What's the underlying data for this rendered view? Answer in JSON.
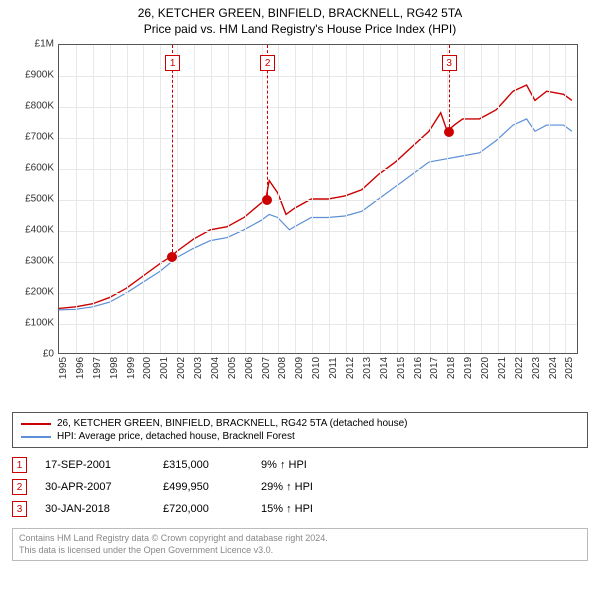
{
  "title": "26, KETCHER GREEN, BINFIELD, BRACKNELL, RG42 5TA",
  "subtitle": "Price paid vs. HM Land Registry's House Price Index (HPI)",
  "chart": {
    "type": "line",
    "xlim": [
      1995,
      2025.8
    ],
    "ylim": [
      0,
      1000000
    ],
    "ytick_step": 100000,
    "yticks": [
      "£0",
      "£100K",
      "£200K",
      "£300K",
      "£400K",
      "£500K",
      "£600K",
      "£700K",
      "£800K",
      "£900K",
      "£1M"
    ],
    "xticks": [
      "1995",
      "1996",
      "1997",
      "1998",
      "1999",
      "2000",
      "2001",
      "2002",
      "2003",
      "2004",
      "2005",
      "2006",
      "2007",
      "2008",
      "2009",
      "2010",
      "2011",
      "2012",
      "2013",
      "2014",
      "2015",
      "2016",
      "2017",
      "2018",
      "2019",
      "2020",
      "2021",
      "2022",
      "2023",
      "2024",
      "2025"
    ],
    "grid_color": "#e8e8e8",
    "background": "#ffffff",
    "series": [
      {
        "name": "26, KETCHER GREEN, BINFIELD, BRACKNELL, RG42 5TA (detached house)",
        "color": "#cc0000",
        "width": 1.4,
        "data": [
          [
            1995,
            145000
          ],
          [
            1996,
            150000
          ],
          [
            1997,
            160000
          ],
          [
            1998,
            180000
          ],
          [
            1999,
            210000
          ],
          [
            2000,
            250000
          ],
          [
            2001,
            290000
          ],
          [
            2001.7,
            315000
          ],
          [
            2002,
            330000
          ],
          [
            2003,
            370000
          ],
          [
            2004,
            400000
          ],
          [
            2005,
            410000
          ],
          [
            2006,
            440000
          ],
          [
            2007.3,
            499950
          ],
          [
            2007.5,
            560000
          ],
          [
            2008,
            520000
          ],
          [
            2008.5,
            450000
          ],
          [
            2009,
            470000
          ],
          [
            2010,
            500000
          ],
          [
            2011,
            500000
          ],
          [
            2012,
            510000
          ],
          [
            2013,
            530000
          ],
          [
            2014,
            580000
          ],
          [
            2015,
            620000
          ],
          [
            2016,
            670000
          ],
          [
            2017,
            720000
          ],
          [
            2017.7,
            780000
          ],
          [
            2018.08,
            720000
          ],
          [
            2018.5,
            740000
          ],
          [
            2019,
            760000
          ],
          [
            2020,
            760000
          ],
          [
            2021,
            790000
          ],
          [
            2022,
            850000
          ],
          [
            2022.8,
            870000
          ],
          [
            2023.3,
            820000
          ],
          [
            2024,
            850000
          ],
          [
            2025,
            840000
          ],
          [
            2025.5,
            820000
          ]
        ]
      },
      {
        "name": "HPI: Average price, detached house, Bracknell Forest",
        "color": "#5b8fd6",
        "width": 1.2,
        "data": [
          [
            1995,
            140000
          ],
          [
            1996,
            142000
          ],
          [
            1997,
            150000
          ],
          [
            1998,
            165000
          ],
          [
            1999,
            195000
          ],
          [
            2000,
            230000
          ],
          [
            2001,
            265000
          ],
          [
            2002,
            310000
          ],
          [
            2003,
            340000
          ],
          [
            2004,
            365000
          ],
          [
            2005,
            375000
          ],
          [
            2006,
            400000
          ],
          [
            2007,
            430000
          ],
          [
            2007.5,
            450000
          ],
          [
            2008,
            440000
          ],
          [
            2008.7,
            400000
          ],
          [
            2009,
            410000
          ],
          [
            2010,
            440000
          ],
          [
            2011,
            440000
          ],
          [
            2012,
            445000
          ],
          [
            2013,
            460000
          ],
          [
            2014,
            500000
          ],
          [
            2015,
            540000
          ],
          [
            2016,
            580000
          ],
          [
            2017,
            620000
          ],
          [
            2018,
            630000
          ],
          [
            2019,
            640000
          ],
          [
            2020,
            650000
          ],
          [
            2021,
            690000
          ],
          [
            2022,
            740000
          ],
          [
            2022.8,
            760000
          ],
          [
            2023.3,
            720000
          ],
          [
            2024,
            740000
          ],
          [
            2025,
            740000
          ],
          [
            2025.5,
            720000
          ]
        ]
      }
    ],
    "sales_markers": [
      {
        "n": "1",
        "x": 2001.7,
        "y": 315000
      },
      {
        "n": "2",
        "x": 2007.33,
        "y": 499950
      },
      {
        "n": "3",
        "x": 2018.08,
        "y": 720000
      }
    ]
  },
  "legend": [
    {
      "color": "#cc0000",
      "label": "26, KETCHER GREEN, BINFIELD, BRACKNELL, RG42 5TA (detached house)"
    },
    {
      "color": "#5b8fd6",
      "label": "HPI: Average price, detached house, Bracknell Forest"
    }
  ],
  "sales": [
    {
      "n": "1",
      "date": "17-SEP-2001",
      "price": "£315,000",
      "diff": "9% ↑ HPI"
    },
    {
      "n": "2",
      "date": "30-APR-2007",
      "price": "£499,950",
      "diff": "29% ↑ HPI"
    },
    {
      "n": "3",
      "date": "30-JAN-2018",
      "price": "£720,000",
      "diff": "15% ↑ HPI"
    }
  ],
  "footer": {
    "line1": "Contains HM Land Registry data © Crown copyright and database right 2024.",
    "line2": "This data is licensed under the Open Government Licence v3.0."
  }
}
